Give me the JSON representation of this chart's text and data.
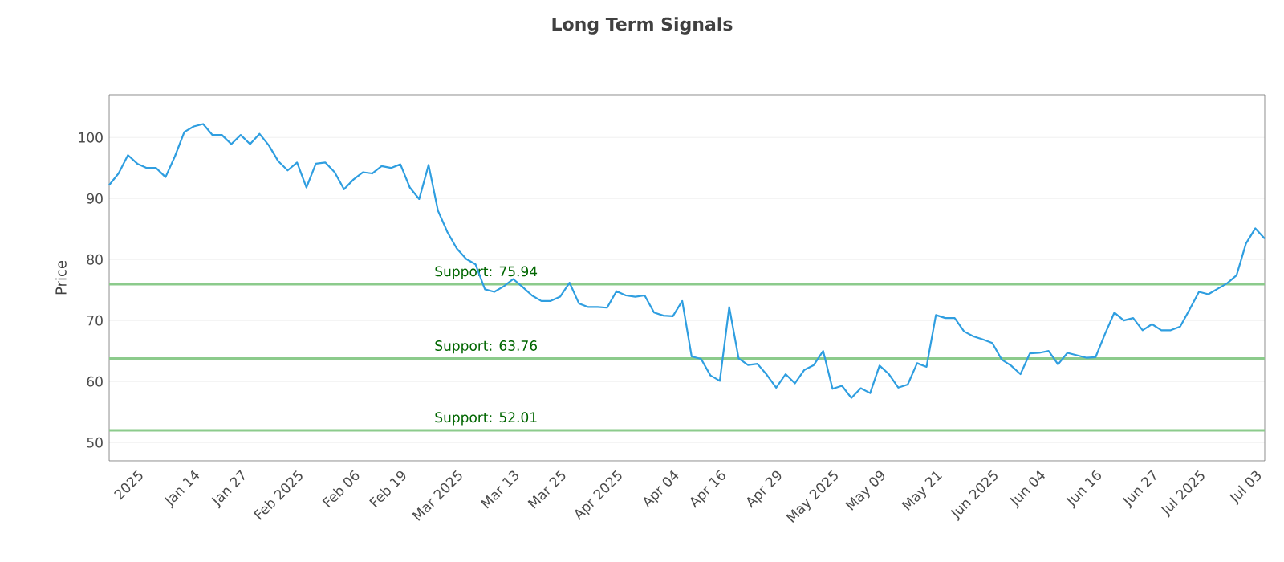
{
  "chart_data": {
    "type": "line",
    "title": "Long Term Signals",
    "ylabel": "Price",
    "categories": [
      null,
      null,
      null,
      "2025",
      null,
      null,
      null,
      null,
      null,
      "Jan 14",
      null,
      null,
      null,
      null,
      "Jan 27",
      null,
      null,
      null,
      null,
      null,
      "Feb 2025",
      null,
      null,
      null,
      null,
      null,
      "Feb 06",
      null,
      null,
      null,
      null,
      "Feb 19",
      null,
      null,
      null,
      null,
      null,
      "Mar 2025",
      null,
      null,
      null,
      null,
      null,
      "Mar 13",
      null,
      null,
      null,
      null,
      "Mar 25",
      null,
      null,
      null,
      null,
      null,
      "Apr 2025",
      null,
      null,
      null,
      null,
      null,
      "Apr 04",
      null,
      null,
      null,
      null,
      "Apr 16",
      null,
      null,
      null,
      null,
      null,
      "Apr 29",
      null,
      null,
      null,
      null,
      null,
      "May 2025",
      null,
      null,
      null,
      null,
      "May 09",
      null,
      null,
      null,
      null,
      null,
      "May 21",
      null,
      null,
      null,
      null,
      null,
      "Jun 2025",
      null,
      null,
      null,
      null,
      "Jun 04",
      null,
      null,
      null,
      null,
      null,
      "Jun 16",
      null,
      null,
      null,
      null,
      null,
      "Jun 27",
      null,
      null,
      null,
      null,
      "Jul 2025",
      null,
      null,
      null,
      null,
      null,
      "Jul 03",
      null
    ],
    "series": [
      {
        "color": "#2f9ee0",
        "values": [
          92.2,
          94.1,
          97.1,
          95.7,
          95.0,
          95.0,
          93.5,
          96.9,
          100.9,
          101.8,
          102.2,
          100.4,
          100.4,
          98.9,
          100.4,
          98.9,
          100.6,
          98.7,
          96.1,
          94.6,
          95.9,
          91.8,
          95.7,
          95.9,
          94.3,
          91.5,
          93.1,
          94.3,
          94.1,
          95.3,
          95.0,
          95.6,
          91.8,
          89.9,
          95.5,
          88.0,
          84.5,
          81.8,
          80.1,
          79.2,
          75.1,
          74.7,
          75.6,
          76.8,
          75.5,
          74.1,
          73.2,
          73.2,
          73.9,
          76.2,
          72.8,
          72.2,
          72.2,
          72.1,
          74.8,
          74.1,
          73.9,
          74.1,
          71.3,
          70.8,
          70.7,
          73.2,
          64.1,
          63.7,
          61.0,
          60.1,
          72.2,
          63.8,
          62.7,
          62.9,
          61.1,
          59.0,
          61.2,
          59.7,
          61.9,
          62.7,
          65.0,
          58.8,
          59.3,
          57.3,
          58.9,
          58.1,
          62.6,
          61.2,
          59.0,
          59.5,
          63.0,
          62.4,
          70.9,
          70.4,
          70.4,
          68.2,
          67.4,
          66.9,
          66.3,
          63.6,
          62.6,
          61.2,
          64.6,
          64.7,
          65.0,
          62.8,
          64.7,
          64.3,
          63.9,
          64.0,
          67.8,
          71.3,
          70.0,
          70.4,
          68.4,
          69.4,
          68.4,
          68.4,
          69.0,
          71.8,
          74.7,
          74.3,
          75.2,
          76.1,
          77.4,
          82.6,
          85.1,
          83.4
        ]
      }
    ],
    "ylim": [
      47,
      107
    ],
    "yticks": [
      50,
      60,
      70,
      80,
      90,
      100
    ],
    "grid": "y",
    "marker": "none",
    "line_style": "solid",
    "ref_lines": [
      {
        "axis": "y",
        "value": 75.94,
        "label": "Support: 75.94",
        "color": "#8ccb8c"
      },
      {
        "axis": "y",
        "value": 63.76,
        "label": "Support: 63.76",
        "color": "#8ccb8c"
      },
      {
        "axis": "y",
        "value": 52.01,
        "label": "Support: 52.01",
        "color": "#8ccb8c"
      }
    ]
  }
}
